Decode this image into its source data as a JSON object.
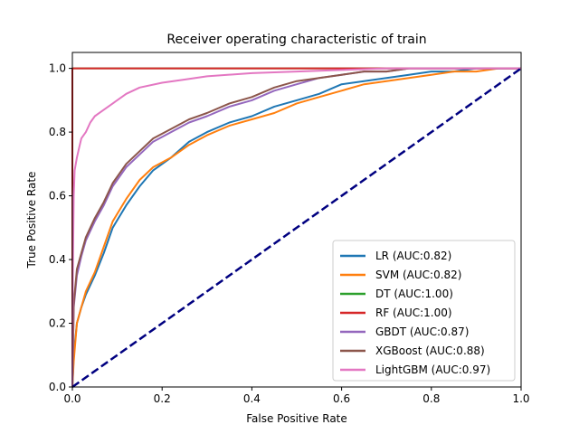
{
  "chart_data": {
    "type": "line",
    "title": "Receiver operating characteristic of train",
    "xlabel": "False Positive Rate",
    "ylabel": "True Positive Rate",
    "xlim": [
      0,
      1
    ],
    "ylim": [
      0,
      1.05
    ],
    "xticks": [
      "0.0",
      "0.2",
      "0.4",
      "0.6",
      "0.8",
      "1.0"
    ],
    "yticks": [
      "0.0",
      "0.2",
      "0.4",
      "0.6",
      "0.8",
      "1.0"
    ],
    "grid": false,
    "legend_position": "lower-right",
    "reference_line": {
      "x": [
        0,
        1
      ],
      "y": [
        0,
        1
      ],
      "color": "#000080",
      "style": "dashed"
    },
    "series": [
      {
        "name": "LR (AUC:0.82)",
        "color": "#1f77b4",
        "x": [
          0,
          0.003,
          0.01,
          0.02,
          0.03,
          0.05,
          0.07,
          0.09,
          0.12,
          0.15,
          0.18,
          0.22,
          0.26,
          0.3,
          0.35,
          0.4,
          0.45,
          0.5,
          0.55,
          0.6,
          0.65,
          0.7,
          0.75,
          0.8,
          0.85,
          0.9,
          0.95,
          1.0
        ],
        "y": [
          0,
          0.1,
          0.2,
          0.25,
          0.29,
          0.35,
          0.42,
          0.5,
          0.57,
          0.63,
          0.68,
          0.72,
          0.77,
          0.8,
          0.83,
          0.85,
          0.88,
          0.9,
          0.92,
          0.95,
          0.96,
          0.97,
          0.98,
          0.99,
          0.99,
          1.0,
          1.0,
          1.0
        ]
      },
      {
        "name": "SVM (AUC:0.82)",
        "color": "#ff7f0e",
        "x": [
          0,
          0.003,
          0.01,
          0.02,
          0.03,
          0.05,
          0.07,
          0.09,
          0.12,
          0.15,
          0.18,
          0.22,
          0.26,
          0.3,
          0.35,
          0.4,
          0.45,
          0.5,
          0.55,
          0.6,
          0.65,
          0.7,
          0.75,
          0.8,
          0.85,
          0.9,
          0.95,
          1.0
        ],
        "y": [
          0,
          0.08,
          0.2,
          0.25,
          0.3,
          0.36,
          0.44,
          0.52,
          0.59,
          0.65,
          0.69,
          0.72,
          0.76,
          0.79,
          0.82,
          0.84,
          0.86,
          0.89,
          0.91,
          0.93,
          0.95,
          0.96,
          0.97,
          0.98,
          0.99,
          0.99,
          1.0,
          1.0
        ]
      },
      {
        "name": "DT (AUC:1.00)",
        "color": "#2ca02c",
        "x": [
          0,
          0,
          1.0
        ],
        "y": [
          0,
          1.0,
          1.0
        ]
      },
      {
        "name": "RF (AUC:1.00)",
        "color": "#d62728",
        "x": [
          0,
          0,
          1.0
        ],
        "y": [
          0,
          1.0,
          1.0
        ]
      },
      {
        "name": "GBDT (AUC:0.87)",
        "color": "#9467bd",
        "x": [
          0,
          0.003,
          0.01,
          0.02,
          0.03,
          0.05,
          0.07,
          0.09,
          0.12,
          0.15,
          0.18,
          0.22,
          0.26,
          0.3,
          0.35,
          0.4,
          0.45,
          0.5,
          0.55,
          0.6,
          0.65,
          0.7,
          0.75,
          0.8,
          0.9,
          1.0
        ],
        "y": [
          0,
          0.25,
          0.35,
          0.41,
          0.46,
          0.52,
          0.57,
          0.63,
          0.69,
          0.73,
          0.77,
          0.8,
          0.83,
          0.85,
          0.88,
          0.9,
          0.93,
          0.95,
          0.97,
          0.98,
          0.99,
          0.99,
          1.0,
          1.0,
          1.0,
          1.0
        ]
      },
      {
        "name": "XGBoost (AUC:0.88)",
        "color": "#8c564b",
        "x": [
          0,
          0.003,
          0.01,
          0.02,
          0.03,
          0.05,
          0.07,
          0.09,
          0.12,
          0.15,
          0.18,
          0.22,
          0.26,
          0.3,
          0.35,
          0.4,
          0.45,
          0.5,
          0.55,
          0.6,
          0.65,
          0.7,
          0.75,
          0.8,
          0.9,
          1.0
        ],
        "y": [
          0,
          0.26,
          0.37,
          0.42,
          0.47,
          0.53,
          0.58,
          0.64,
          0.7,
          0.74,
          0.78,
          0.81,
          0.84,
          0.86,
          0.89,
          0.91,
          0.94,
          0.96,
          0.97,
          0.98,
          0.99,
          0.99,
          1.0,
          1.0,
          1.0,
          1.0
        ]
      },
      {
        "name": "LightGBM (AUC:0.97)",
        "color": "#e377c2",
        "x": [
          0,
          0.001,
          0.003,
          0.005,
          0.01,
          0.015,
          0.02,
          0.03,
          0.04,
          0.05,
          0.07,
          0.09,
          0.12,
          0.15,
          0.2,
          0.25,
          0.3,
          0.4,
          0.5,
          0.6,
          0.7,
          0.8,
          1.0
        ],
        "y": [
          0,
          0.35,
          0.6,
          0.68,
          0.72,
          0.75,
          0.78,
          0.8,
          0.83,
          0.85,
          0.87,
          0.89,
          0.92,
          0.94,
          0.955,
          0.965,
          0.975,
          0.985,
          0.99,
          0.995,
          1.0,
          1.0,
          1.0
        ]
      }
    ]
  }
}
